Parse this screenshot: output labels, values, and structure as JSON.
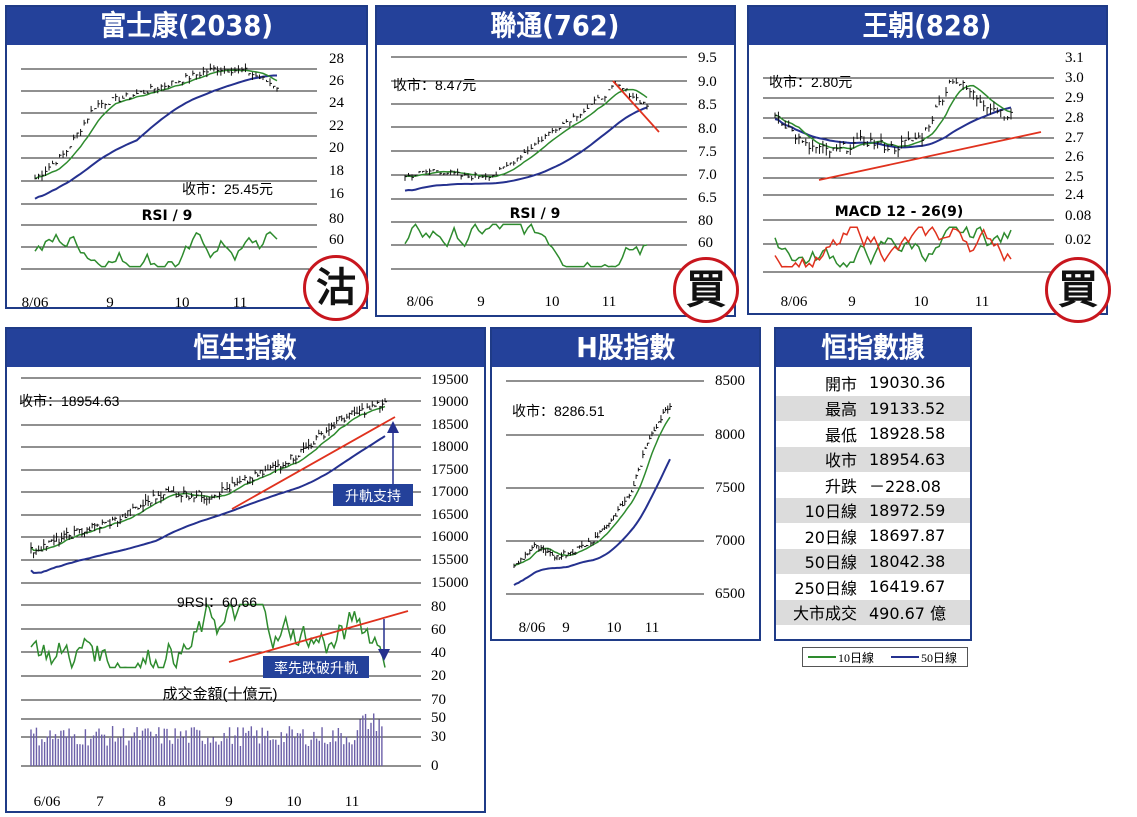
{
  "charts": {
    "fsk": {
      "title": "富士康(2038)",
      "close_label": "收市：25.45元",
      "indicator_label": "RSI / 9",
      "stamp": "沽",
      "y_ticks": [
        "28",
        "26",
        "24",
        "22",
        "20",
        "18",
        "16"
      ],
      "ind_ticks": [
        "80",
        "60"
      ],
      "x_ticks": [
        "8/06",
        "9",
        "10",
        "11"
      ]
    },
    "lt": {
      "title": "聯通(762)",
      "close_label": "收市：8.47元",
      "indicator_label": "RSI / 9",
      "stamp": "買",
      "y_ticks": [
        "9.5",
        "9.0",
        "8.5",
        "8.0",
        "7.5",
        "7.0",
        "6.5"
      ],
      "ind_ticks": [
        "80",
        "60"
      ],
      "x_ticks": [
        "8/06",
        "9",
        "10",
        "11"
      ]
    },
    "wc": {
      "title": "王朝(828)",
      "close_label": "收市：2.80元",
      "indicator_label": "MACD 12 - 26(9)",
      "stamp": "買",
      "y_ticks": [
        "3.1",
        "3.0",
        "2.9",
        "2.8",
        "2.7",
        "2.6",
        "2.5",
        "2.4"
      ],
      "ind_ticks": [
        "0.08",
        "0.02"
      ],
      "x_ticks": [
        "8/06",
        "9",
        "10",
        "11"
      ]
    },
    "hsi": {
      "title": "恒生指數",
      "close_label": "收市：18954.63",
      "rsi_label": "9RSI：60.66",
      "turnover_label": "成交金額(十億元)",
      "support_callout": "升軌支持",
      "break_callout": "率先跌破升軌",
      "y_ticks": [
        "19500",
        "19000",
        "18500",
        "18000",
        "17500",
        "17000",
        "16500",
        "16000",
        "15500",
        "15000"
      ],
      "rsi_ticks": [
        "80",
        "60",
        "40",
        "20"
      ],
      "turnover_ticks": [
        "70",
        "50",
        "30",
        "0"
      ],
      "x_ticks": [
        "6/06",
        "7",
        "8",
        "9",
        "10",
        "11"
      ]
    },
    "hshare": {
      "title": "H股指數",
      "close_label": "收市：8286.51",
      "y_ticks": [
        "8500",
        "8000",
        "7500",
        "7000",
        "6500"
      ],
      "x_ticks": [
        "8/06",
        "9",
        "10",
        "11"
      ]
    }
  },
  "stats": {
    "title": "恒指數據",
    "rows": [
      {
        "label": "開市",
        "value": "19030.36"
      },
      {
        "label": "最高",
        "value": "19133.52"
      },
      {
        "label": "最低",
        "value": "18928.58"
      },
      {
        "label": "收市",
        "value": "18954.63"
      },
      {
        "label": "升跌",
        "value": "－228.08"
      },
      {
        "label": "10日線",
        "value": "18972.59"
      },
      {
        "label": "20日線",
        "value": "18697.87"
      },
      {
        "label": "50日線",
        "value": "18042.38"
      },
      {
        "label": "250日線",
        "value": "16419.67"
      },
      {
        "label": "大市成交",
        "value": "490.67 億"
      }
    ],
    "legend": [
      {
        "name": "10日線",
        "color": "#2e8b2e"
      },
      {
        "name": "50日線",
        "color": "#25318f"
      }
    ]
  },
  "colors": {
    "ma_short": "#2e8b2e",
    "ma_long": "#25318f",
    "trend": "#e0321e",
    "panel": "#24419a",
    "stamp": "#c8161e"
  },
  "chart_data": [
    {
      "type": "line",
      "title": "富士康(2038)",
      "ylim": [
        16,
        28
      ],
      "series": [
        {
          "name": "收市",
          "x": [
            0,
            10,
            20,
            30,
            40,
            50,
            60,
            70,
            80
          ],
          "values": [
            17.2,
            19.5,
            23.8,
            24.5,
            25.3,
            26.2,
            27.1,
            26.8,
            25.45
          ]
        }
      ]
    },
    {
      "type": "line",
      "title": "聯通(762)",
      "ylim": [
        6.5,
        9.5
      ],
      "series": [
        {
          "name": "收市",
          "x": [
            0,
            10,
            20,
            30,
            40,
            50,
            60,
            70,
            80
          ],
          "values": [
            6.95,
            7.1,
            6.95,
            7.0,
            7.5,
            8.0,
            8.4,
            8.9,
            8.47
          ]
        }
      ]
    },
    {
      "type": "line",
      "title": "王朝(828)",
      "ylim": [
        2.4,
        3.1
      ],
      "series": [
        {
          "name": "收市",
          "x": [
            0,
            10,
            20,
            30,
            40,
            50,
            60,
            70,
            80
          ],
          "values": [
            2.82,
            2.65,
            2.62,
            2.68,
            2.64,
            2.7,
            3.0,
            2.88,
            2.8
          ]
        }
      ]
    },
    {
      "type": "line",
      "title": "恒生指數",
      "ylim": [
        15000,
        19500
      ],
      "series": [
        {
          "name": "收市",
          "x": [
            0,
            10,
            20,
            30,
            40,
            50,
            60,
            70,
            80
          ],
          "values": [
            15700,
            16100,
            16400,
            17000,
            16900,
            17300,
            17800,
            18600,
            18954.63
          ]
        }
      ]
    },
    {
      "type": "line",
      "title": "H股指數",
      "ylim": [
        6500,
        8500
      ],
      "series": [
        {
          "name": "收市",
          "x": [
            0,
            10,
            20,
            30,
            40,
            50,
            60,
            70,
            80
          ],
          "values": [
            6750,
            6950,
            6850,
            6900,
            7000,
            7200,
            7450,
            8000,
            8286.51
          ]
        }
      ]
    }
  ]
}
